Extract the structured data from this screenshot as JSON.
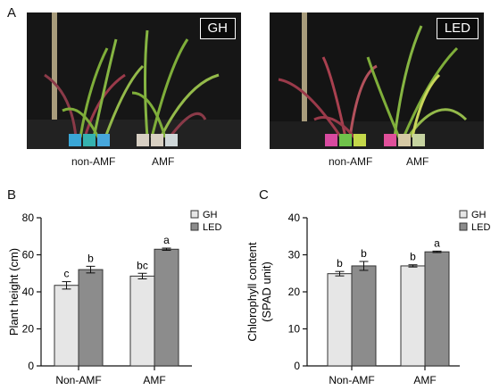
{
  "panel_a": {
    "letter": "A",
    "photos": [
      {
        "label": "GH",
        "captions": [
          "non-AMF",
          "AMF"
        ]
      },
      {
        "label": "LED",
        "captions": [
          "non-AMF",
          "AMF"
        ]
      }
    ]
  },
  "colors": {
    "gh_bar": "#e6e6e6",
    "led_bar": "#8c8c8c",
    "bar_stroke": "#333333",
    "photo_bg": "#151515",
    "leaf_green": "#7fae3a",
    "leaf_red": "#9a3a4a"
  },
  "chart_data": [
    {
      "panel_letter": "B",
      "type": "bar",
      "categories": [
        "Non-AMF",
        "AMF"
      ],
      "series": [
        {
          "name": "GH",
          "values": [
            43.5,
            48.5
          ],
          "errors": [
            2.0,
            1.5
          ],
          "letters": [
            "c",
            "bc"
          ]
        },
        {
          "name": "LED",
          "values": [
            52.0,
            63.0
          ],
          "errors": [
            1.8,
            0.6
          ],
          "letters": [
            "b",
            "a"
          ]
        }
      ],
      "ylabel": "Plant height (cm)",
      "ylim": [
        0,
        80
      ],
      "yticks": [
        "0",
        "20",
        "40",
        "60",
        "80"
      ],
      "legend_position": "top-right",
      "grid": false
    },
    {
      "panel_letter": "C",
      "type": "bar",
      "categories": [
        "Non-AMF",
        "AMF"
      ],
      "series": [
        {
          "name": "GH",
          "values": [
            24.9,
            27.0
          ],
          "errors": [
            0.6,
            0.3
          ],
          "letters": [
            "b",
            "b"
          ]
        },
        {
          "name": "LED",
          "values": [
            27.0,
            30.8
          ],
          "errors": [
            1.2,
            0.2
          ],
          "letters": [
            "b",
            "a"
          ]
        }
      ],
      "ylabel_lines": [
        "Chlorophyll content",
        "(SPAD unit)"
      ],
      "ylim": [
        0,
        40
      ],
      "yticks": [
        "0",
        "10",
        "20",
        "30",
        "40"
      ],
      "legend_position": "top-right",
      "grid": false
    }
  ]
}
